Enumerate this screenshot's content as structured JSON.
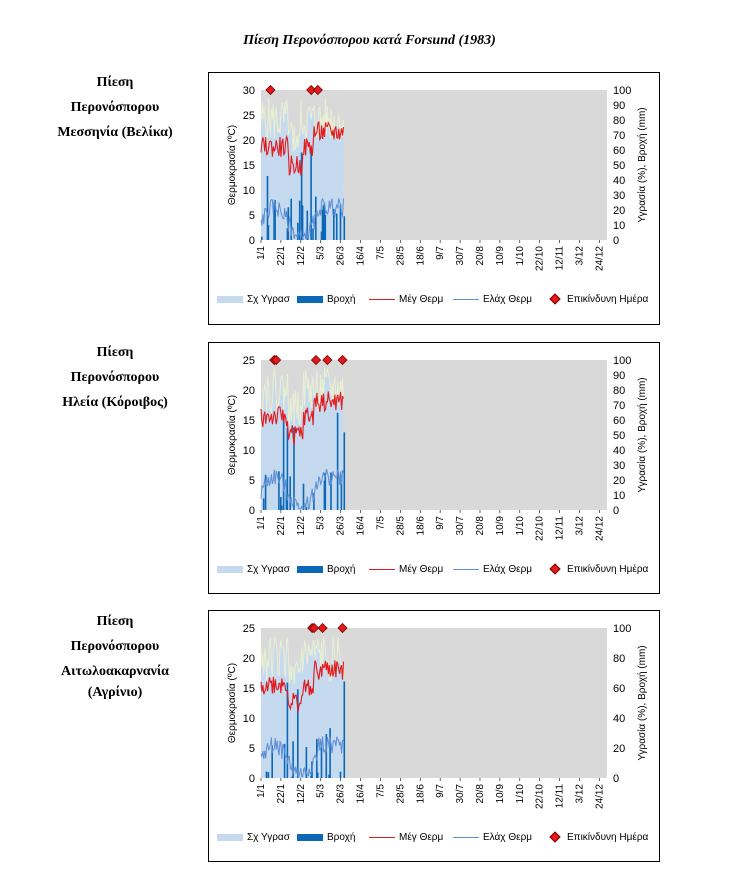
{
  "document": {
    "title": "Πίεση Περονόσπορου κατά Forsund (1983)"
  },
  "colors": {
    "humidity": "#c5d9ef",
    "rain": "#0b68b6",
    "tmax": "#e31a1c",
    "tmin": "#5b8fd6",
    "danger": "#e31a1c",
    "plot_bg": "#d9d9d9",
    "humidity_top": "#e9efd2"
  },
  "legend": {
    "humidity": "Σχ Υγρασ",
    "rain": "Βροχή",
    "tmax": "Μέγ Θερμ",
    "tmin": "Ελάχ Θερμ",
    "danger": "Επικίνδυνη Ημέρα"
  },
  "stations": [
    {
      "label_lines": [
        "Πίεση",
        "Περονόσπορου",
        "Μεσσηνία (Βελίκα)"
      ],
      "chart_data": {
        "type": "line",
        "x_tick_labels": [
          "1/1",
          "22/1",
          "12/2",
          "5/3",
          "26/3",
          "16/4",
          "7/5",
          "28/5",
          "18/6",
          "9/7",
          "30/7",
          "20/8",
          "10/9",
          "1/10",
          "22/10",
          "12/11",
          "3/12",
          "24/12"
        ],
        "ylabel": "Θερμοκρασία (ºC)",
        "y2label": "Υγρασία (%), Βροχή (mm)",
        "ylim": [
          0,
          30
        ],
        "y_ticks": [
          "0",
          "5",
          "10",
          "15",
          "20",
          "25",
          "30"
        ],
        "y2lim": [
          0,
          100
        ],
        "y2_ticks": [
          "0",
          "10",
          "20",
          "30",
          "40",
          "50",
          "60",
          "70",
          "80",
          "90",
          "100"
        ],
        "data_days": 88,
        "danger_days": [
          10,
          53,
          60
        ],
        "grid": false
      }
    },
    {
      "label_lines": [
        "Πίεση",
        "Περονόσπορου",
        "Ηλεία (Κόροιβος)"
      ],
      "chart_data": {
        "type": "line",
        "x_tick_labels": [
          "1/1",
          "22/1",
          "12/2",
          "5/3",
          "26/3",
          "16/4",
          "7/5",
          "28/5",
          "18/6",
          "9/7",
          "30/7",
          "20/8",
          "10/9",
          "1/10",
          "22/10",
          "12/11",
          "3/12",
          "24/12"
        ],
        "ylabel": "Θερμοκρασία (ºC)",
        "y2label": "Υγρασία (%), Βροχή (mm)",
        "ylim": [
          0,
          25
        ],
        "y_ticks": [
          "0",
          "5",
          "10",
          "15",
          "20",
          "25"
        ],
        "y2lim": [
          0,
          100
        ],
        "y2_ticks": [
          "0",
          "10",
          "20",
          "30",
          "40",
          "50",
          "60",
          "70",
          "80",
          "90",
          "100"
        ],
        "data_days": 88,
        "danger_days": [
          14,
          16,
          58,
          70,
          86
        ],
        "grid": false
      }
    },
    {
      "label_lines": [
        "Πίεση",
        "Περονόσπορου",
        "Αιτωλοακαρνανία",
        "(Αγρίνιο)"
      ],
      "chart_data": {
        "type": "line",
        "x_tick_labels": [
          "1/1",
          "22/1",
          "12/2",
          "5/3",
          "26/3",
          "16/4",
          "7/5",
          "28/5",
          "18/6",
          "9/7",
          "30/7",
          "20/8",
          "10/9",
          "1/10",
          "22/10",
          "12/11",
          "3/12",
          "24/12"
        ],
        "ylabel": "Θερμοκρασία (ºC)",
        "y2label": "Υγρασία (%), Βροχή (mm)",
        "ylim": [
          0,
          25
        ],
        "y_ticks": [
          "0",
          "5",
          "10",
          "15",
          "20",
          "25"
        ],
        "y2lim": [
          0,
          100
        ],
        "y2_ticks": [
          "0",
          "20",
          "40",
          "60",
          "80",
          "100"
        ],
        "data_days": 88,
        "danger_days": [
          54,
          56,
          65,
          86
        ],
        "grid": false
      }
    }
  ]
}
